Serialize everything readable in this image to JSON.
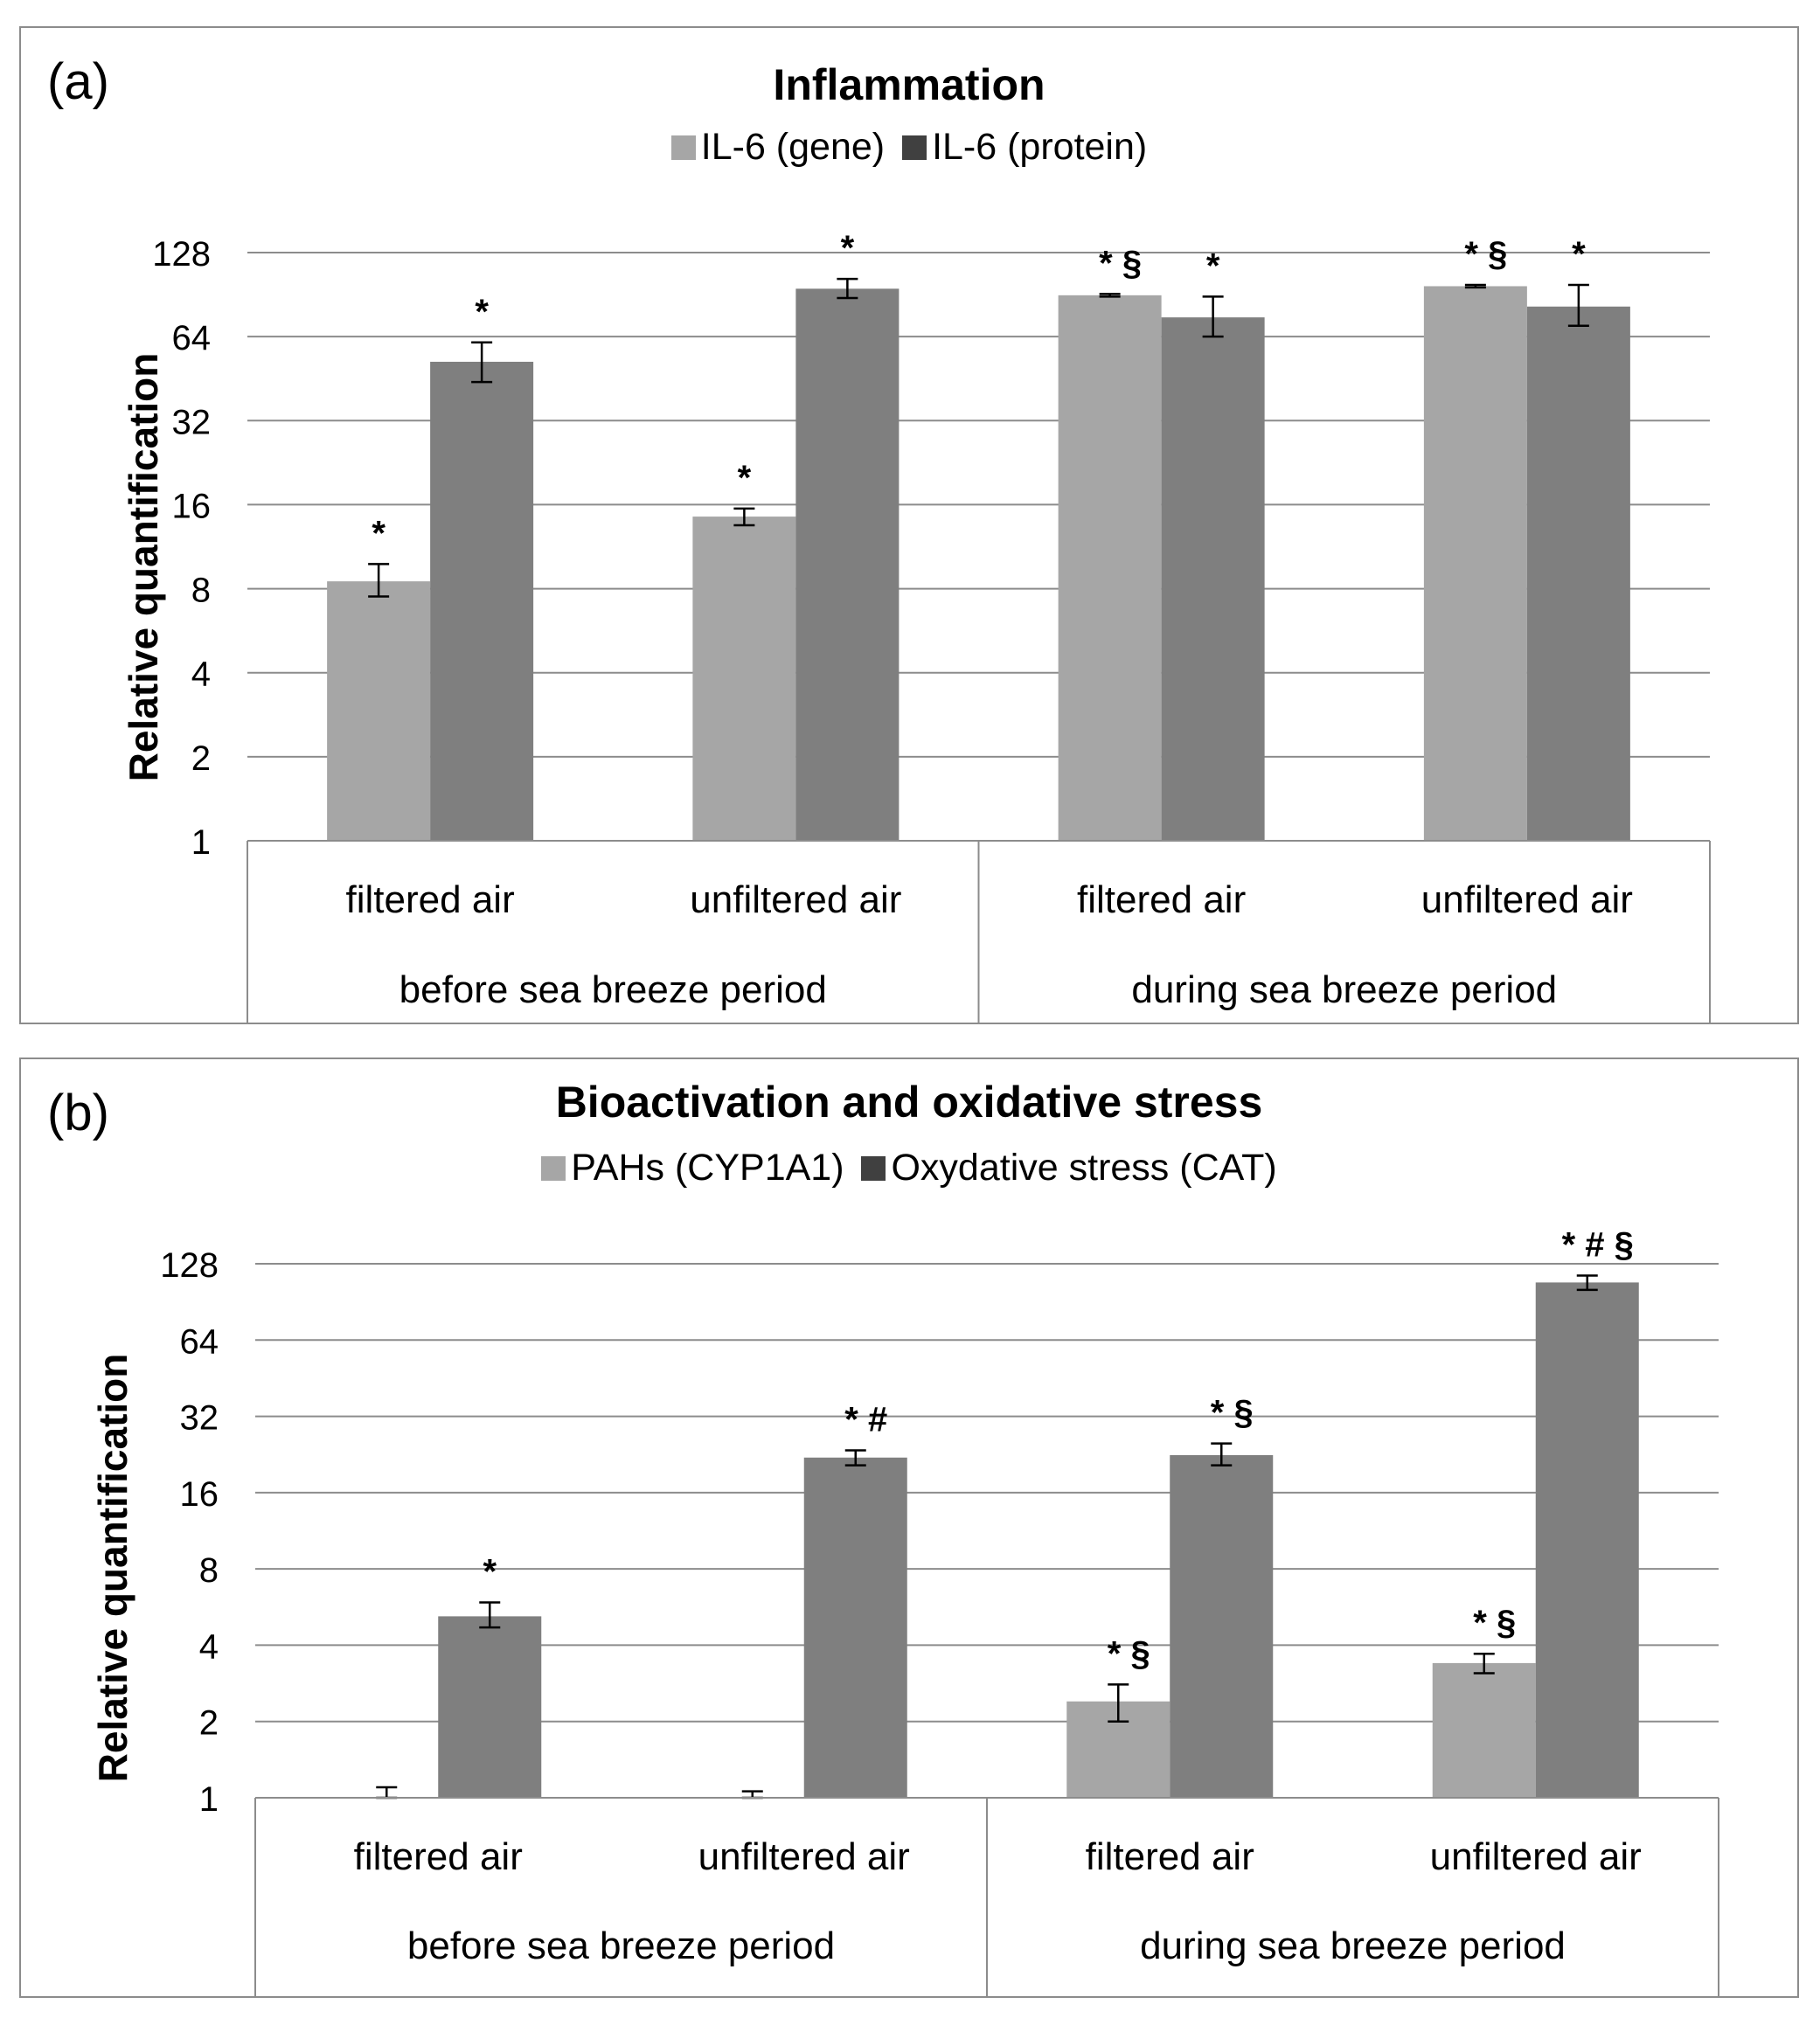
{
  "colors": {
    "series1": "#a6a6a6",
    "series2": "#7f7f7f",
    "legend_series2": "#404040",
    "grid": "#8c8c8c",
    "frame": "#8c8c8c"
  },
  "chart_data": [
    {
      "panel_label": "(a)",
      "type": "bar",
      "title": "Inflammation",
      "ylabel": "Relative quantification",
      "yscale": "log2",
      "ylim": [
        1,
        128
      ],
      "yticks": [
        "1",
        "2",
        "4",
        "8",
        "16",
        "32",
        "64",
        "128"
      ],
      "categories": [
        "filtered air",
        "unfiltered air",
        "filtered air",
        "unfiltered air"
      ],
      "groups": [
        "before sea breeze period",
        "during sea breeze period"
      ],
      "series": [
        {
          "name": "IL-6 (gene)",
          "values": [
            8.5,
            14.5,
            90,
            97
          ],
          "err_low": [
            7.5,
            13.5,
            89,
            96
          ],
          "err_high": [
            9.8,
            15.5,
            91,
            98
          ],
          "annotations": [
            "*",
            "*",
            "* §",
            "* §"
          ]
        },
        {
          "name": "IL-6 (protein)",
          "values": [
            52,
            95,
            75,
            82
          ],
          "err_low": [
            44,
            88,
            64,
            70
          ],
          "err_high": [
            61,
            103,
            89,
            98
          ],
          "annotations": [
            "*",
            "*",
            "*",
            "*"
          ]
        }
      ]
    },
    {
      "panel_label": "(b)",
      "type": "bar",
      "title": "Bioactivation and oxidative stress",
      "ylabel": "Relative quantification",
      "yscale": "log2",
      "ylim": [
        1,
        128
      ],
      "yticks": [
        "1",
        "2",
        "4",
        "8",
        "16",
        "32",
        "64",
        "128"
      ],
      "categories": [
        "filtered air",
        "unfiltered air",
        "filtered air",
        "unfiltered air"
      ],
      "groups": [
        "before sea breeze period",
        "during sea breeze period"
      ],
      "series": [
        {
          "name": "PAHs (CYP1A1)",
          "values": [
            1,
            1,
            2.4,
            3.4
          ],
          "err_low": [
            1,
            1,
            2.0,
            3.1
          ],
          "err_high": [
            1.1,
            1.06,
            2.8,
            3.7
          ],
          "annotations": [
            "",
            "",
            "* §",
            "* §"
          ]
        },
        {
          "name": "Oxydative stress (CAT)",
          "values": [
            5.2,
            22,
            22.5,
            108
          ],
          "err_low": [
            4.7,
            20.5,
            20.5,
            101
          ],
          "err_high": [
            5.9,
            23.5,
            25,
            115
          ],
          "annotations": [
            "*",
            "* #",
            "* §",
            "* # §"
          ]
        }
      ]
    }
  ]
}
